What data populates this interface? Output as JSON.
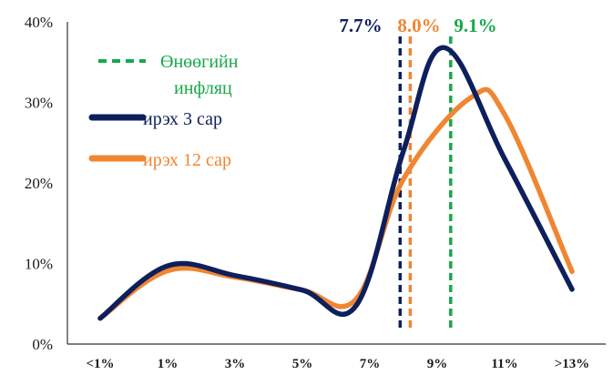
{
  "chart_data": {
    "type": "line",
    "x_axis": {
      "tick_labels": [
        "<1%",
        "1%",
        "3%",
        "5%",
        "7%",
        "9%",
        "11%",
        ">13%"
      ],
      "note": "category positions correspond to inflation buckets"
    },
    "y_axis": {
      "tick_labels": [
        "0%",
        "10%",
        "20%",
        "30%",
        "40%"
      ],
      "ylim": [
        0,
        40
      ]
    },
    "series": [
      {
        "name": "ирэх 3 сар",
        "color": "#0d1f5c",
        "values": [
          {
            "x": 0.0,
            "y": 3.2
          },
          {
            "x": 1.0,
            "y": 9.7
          },
          {
            "x": 2.0,
            "y": 8.5
          },
          {
            "x": 3.0,
            "y": 6.7
          },
          {
            "x": 3.8,
            "y": 4.8
          },
          {
            "x": 4.5,
            "y": 24.0
          },
          {
            "x": 5.1,
            "y": 36.8
          },
          {
            "x": 6.0,
            "y": 23.0
          },
          {
            "x": 7.0,
            "y": 6.8
          }
        ]
      },
      {
        "name": "ирэх 12 сар",
        "color": "#ef8632",
        "values": [
          {
            "x": 0.0,
            "y": 3.2
          },
          {
            "x": 1.0,
            "y": 9.1
          },
          {
            "x": 2.0,
            "y": 8.3
          },
          {
            "x": 3.0,
            "y": 6.7
          },
          {
            "x": 3.8,
            "y": 5.6
          },
          {
            "x": 4.5,
            "y": 20.5
          },
          {
            "x": 5.5,
            "y": 30.6
          },
          {
            "x": 6.0,
            "y": 28.5
          },
          {
            "x": 7.0,
            "y": 9.0
          }
        ]
      }
    ],
    "reference_lines": [
      {
        "label": "7.7%",
        "color": "#0d1f5c",
        "x": 4.45
      },
      {
        "label": "8.0%",
        "color": "#ef8632",
        "x": 4.6
      },
      {
        "label": "9.1%",
        "color": "#18a84a",
        "x": 5.2
      }
    ],
    "legend": {
      "placement": "top-left",
      "items": [
        {
          "label": "Өнөөгийн",
          "label2": "инфляц",
          "color": "#18a84a",
          "style": "dashed"
        },
        {
          "label": "ирэх 3 сар",
          "color": "#0d1f5c",
          "style": "solid"
        },
        {
          "label": "ирэх 12 сар",
          "color": "#ef8632",
          "style": "solid"
        }
      ]
    },
    "grid": false
  }
}
